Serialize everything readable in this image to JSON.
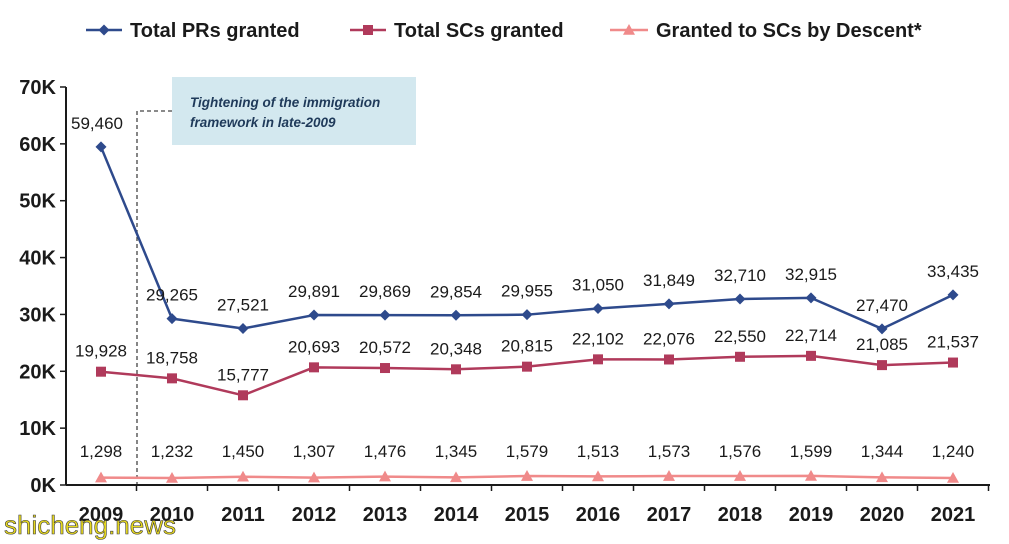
{
  "chart_data": {
    "type": "line",
    "categories": [
      "2009",
      "2010",
      "2011",
      "2012",
      "2013",
      "2014",
      "2015",
      "2016",
      "2017",
      "2018",
      "2019",
      "2020",
      "2021"
    ],
    "ylim": [
      0,
      70000
    ],
    "yticks": [
      {
        "value": 0,
        "label": "0K"
      },
      {
        "value": 10000,
        "label": "10K"
      },
      {
        "value": 20000,
        "label": "20K"
      },
      {
        "value": 30000,
        "label": "30K"
      },
      {
        "value": 40000,
        "label": "40K"
      },
      {
        "value": 50000,
        "label": "50K"
      },
      {
        "value": 60000,
        "label": "60K"
      },
      {
        "value": 70000,
        "label": "70K"
      }
    ],
    "grid": false,
    "legend_position": "top",
    "series": [
      {
        "name": "Total PRs granted",
        "color": "#2e4a8c",
        "marker": "diamond",
        "values": [
          59460,
          29265,
          27521,
          29891,
          29869,
          29854,
          29955,
          31050,
          31849,
          32710,
          32915,
          27470,
          33435
        ],
        "labels": [
          "59,460",
          "29,265",
          "27,521",
          "29,891",
          "29,869",
          "29,854",
          "29,955",
          "31,050",
          "31,849",
          "32,710",
          "32,915",
          "27,470",
          "33,435"
        ]
      },
      {
        "name": "Total SCs granted",
        "color": "#b03a5b",
        "marker": "square",
        "values": [
          19928,
          18758,
          15777,
          20693,
          20572,
          20348,
          20815,
          22102,
          22076,
          22550,
          22714,
          21085,
          21537
        ],
        "labels": [
          "19,928",
          "18,758",
          "15,777",
          "20,693",
          "20,572",
          "20,348",
          "20,815",
          "22,102",
          "22,076",
          "22,550",
          "22,714",
          "21,085",
          "21,537"
        ]
      },
      {
        "name": "Granted to SCs by Descent*",
        "color": "#f08a8a",
        "marker": "triangle",
        "values": [
          1298,
          1232,
          1450,
          1307,
          1476,
          1345,
          1579,
          1513,
          1573,
          1576,
          1599,
          1344,
          1240
        ],
        "labels": [
          "1,298",
          "1,232",
          "1,450",
          "1,307",
          "1,476",
          "1,345",
          "1,579",
          "1,513",
          "1,573",
          "1,576",
          "1,599",
          "1,344",
          "1,240"
        ]
      }
    ],
    "annotation": {
      "text_lines": [
        "Tightening of the immigration",
        "framework in late-2009"
      ],
      "background": "#d3e8ef"
    }
  },
  "watermark": "shicheng.news"
}
